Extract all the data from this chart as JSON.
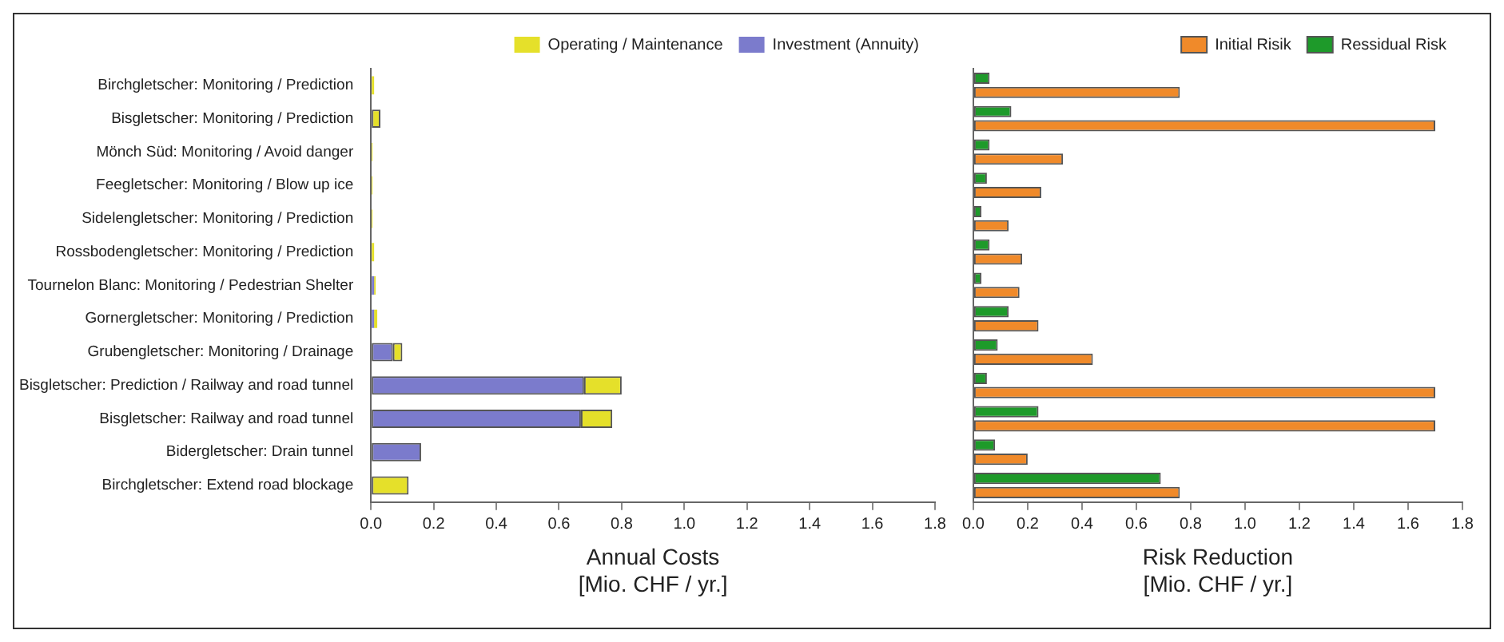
{
  "chart_data": [
    {
      "type": "bar",
      "orientation": "horizontal",
      "stacked": true,
      "xlabel": "Annual Costs\n[Mio. CHF / yr.]",
      "categories": [
        "Birchgletscher: Monitoring / Prediction",
        "Bisgletscher: Monitoring / Prediction",
        "Mönch Süd: Monitoring / Avoid danger",
        "Feegletscher: Monitoring / Blow up ice",
        "Sidelengletscher: Monitoring / Prediction",
        "Rossbodengletscher: Monitoring / Prediction",
        "Tournelon Blanc: Monitoring / Pedestrian Shelter",
        "Gornergletscher: Monitoring / Prediction",
        "Grubengletscher: Monitoring / Drainage",
        "Bisgletscher: Prediction / Railway and road tunnel",
        "Bisgletscher: Railway and road tunnel",
        "Bidergletscher: Drain tunnel",
        "Birchgletscher: Extend road blockage"
      ],
      "series": [
        {
          "name": "Investment (Annuity)",
          "color": "#7b7bcc",
          "values": [
            0,
            0,
            0,
            0,
            0,
            0,
            0.01,
            0.01,
            0.07,
            0.68,
            0.67,
            0.16,
            0
          ]
        },
        {
          "name": "Operating / Maintenance",
          "color": "#e5e02a",
          "values": [
            0.01,
            0.03,
            0.005,
            0.005,
            0.005,
            0.01,
            0.005,
            0.01,
            0.03,
            0.12,
            0.1,
            0,
            0.12
          ]
        }
      ],
      "xlim": [
        0,
        1.8
      ],
      "xticks": [
        {
          "value": 0,
          "label": "0.0"
        },
        {
          "value": 0.2,
          "label": "0.2"
        },
        {
          "value": 0.4,
          "label": "0.4"
        },
        {
          "value": 0.6,
          "label": "0.6"
        },
        {
          "value": 0.8,
          "label": "0.8"
        },
        {
          "value": 1,
          "label": "1.0"
        },
        {
          "value": 1.2,
          "label": "1.2"
        },
        {
          "value": 1.4,
          "label": "1.4"
        },
        {
          "value": 1.6,
          "label": "1.6"
        },
        {
          "value": 1.8,
          "label": "1.8"
        }
      ],
      "legend": "top right"
    },
    {
      "type": "bar",
      "orientation": "horizontal",
      "xlabel": "Risk Reduction\n[Mio. CHF / yr.]",
      "tick_labels": "x",
      "categories": [
        null,
        null,
        null,
        null,
        null,
        null,
        null,
        null,
        null,
        null,
        null,
        null,
        null
      ],
      "series": [
        {
          "name": "Ressidual Risk",
          "color": "#1e9a2a",
          "values": [
            0.06,
            0.14,
            0.06,
            0.05,
            0.03,
            0.06,
            0.03,
            0.13,
            0.09,
            0.05,
            0.24,
            0.08,
            0.69
          ]
        },
        {
          "name": "Initial Risik",
          "color": "#f08a2a",
          "values": [
            0.76,
            1.7,
            0.33,
            0.25,
            0.13,
            0.18,
            0.17,
            0.24,
            0.44,
            1.7,
            1.7,
            0.2,
            0.76
          ]
        }
      ],
      "xlim": [
        0,
        1.8
      ],
      "xticks": [
        {
          "value": 0,
          "label": "0.0"
        },
        {
          "value": 0.2,
          "label": "0.2"
        },
        {
          "value": 0.4,
          "label": "0.4"
        },
        {
          "value": 0.6,
          "label": "0.6"
        },
        {
          "value": 0.8,
          "label": "0.8"
        },
        {
          "value": 1,
          "label": "1.0"
        },
        {
          "value": 1.2,
          "label": "1.2"
        },
        {
          "value": 1.4,
          "label": "1.4"
        },
        {
          "value": 1.6,
          "label": "1.6"
        },
        {
          "value": 1.8,
          "label": "1.8"
        }
      ],
      "legend": "top right"
    }
  ]
}
